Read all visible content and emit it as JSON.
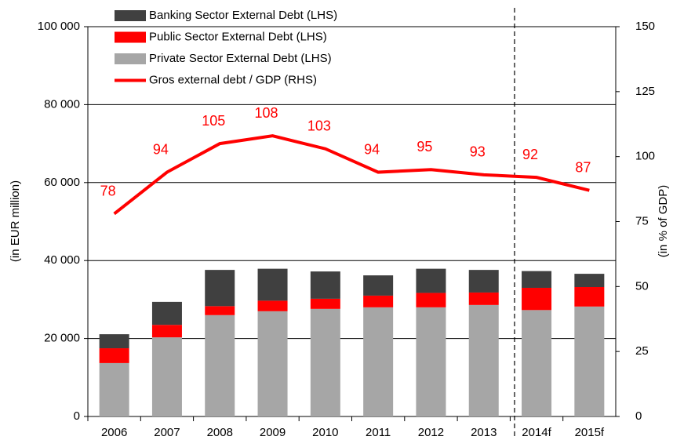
{
  "chart_data": {
    "type": "bar_line",
    "categories": [
      "2006",
      "2007",
      "2008",
      "2009",
      "2010",
      "2011",
      "2012",
      "2013",
      "2014f",
      "2015f"
    ],
    "series": [
      {
        "name": "Private Sector External Debt (LHS)",
        "color": "#a6a6a6",
        "values": [
          13700,
          20300,
          26000,
          27000,
          27600,
          28000,
          28000,
          28600,
          27300,
          28200
        ]
      },
      {
        "name": "Public Sector External Debt (LHS)",
        "color": "#ff0000",
        "values": [
          3800,
          3200,
          2300,
          2700,
          2600,
          3000,
          3700,
          3200,
          5700,
          5000
        ]
      },
      {
        "name": "Banking Sector External Debt (LHS)",
        "color": "#404040",
        "values": [
          3600,
          5900,
          9300,
          8200,
          7000,
          5200,
          6200,
          5800,
          4300,
          3400
        ]
      },
      {
        "name": "Gros external debt / GDP (RHS)",
        "color": "#ff0000",
        "axis": "y2",
        "type": "line",
        "values": [
          78,
          94,
          105,
          108,
          103,
          94,
          95,
          93,
          92,
          87
        ]
      }
    ],
    "ylabel": "(in EUR million)",
    "y2label": "(in % of GDP)",
    "ylim": [
      0,
      100000
    ],
    "yticks": [
      0,
      {
        "value": 20000,
        "label": "20 000"
      },
      {
        "value": 40000,
        "label": "40 000"
      },
      {
        "value": 60000,
        "label": "60 000"
      },
      {
        "value": 80000,
        "label": "80 000"
      },
      {
        "value": 100000,
        "label": "100 000"
      }
    ],
    "y2lim": [
      0,
      150
    ],
    "y2ticks": [
      0,
      25,
      50,
      75,
      100,
      125,
      150
    ],
    "grid": true
  }
}
